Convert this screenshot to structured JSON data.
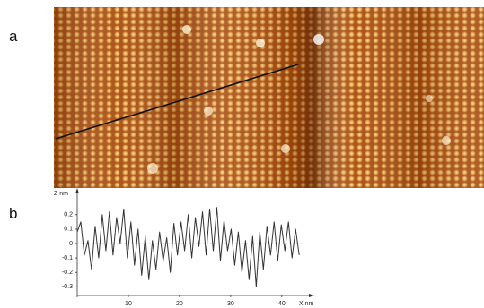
{
  "panel_labels": [
    "a",
    "b"
  ],
  "chart_data": {
    "type": "line",
    "y_label": "Z nm",
    "x_label": "X nm",
    "x": [
      0,
      0.7,
      1.4,
      2.1,
      2.8,
      3.5,
      4.2,
      4.9,
      5.6,
      6.3,
      7,
      7.7,
      8.4,
      9.1,
      9.8,
      10.5,
      11.2,
      11.9,
      12.6,
      13.3,
      14,
      14.7,
      15.4,
      16.1,
      16.8,
      17.5,
      18.2,
      18.9,
      19.6,
      20.3,
      21,
      21.7,
      22.4,
      23.1,
      23.8,
      24.5,
      25.2,
      25.9,
      26.6,
      27.3,
      28,
      28.7,
      29.4,
      30.1,
      30.8,
      31.5,
      32.2,
      32.9,
      33.6,
      34.3,
      35,
      35.7,
      36.4,
      37.1,
      37.8,
      38.5,
      39.2,
      39.9,
      40.6,
      41.3,
      42,
      42.7,
      43.4
    ],
    "values": [
      0.08,
      0.15,
      -0.08,
      0.02,
      -0.18,
      0.12,
      -0.1,
      0.2,
      -0.05,
      0.22,
      -0.08,
      0.18,
      0.0,
      0.24,
      -0.1,
      0.15,
      -0.15,
      0.1,
      -0.22,
      0.05,
      -0.25,
      0.02,
      -0.18,
      0.08,
      -0.12,
      0.04,
      -0.2,
      0.14,
      -0.08,
      0.15,
      -0.05,
      0.2,
      -0.1,
      0.18,
      -0.02,
      0.22,
      -0.08,
      0.24,
      -0.05,
      0.25,
      -0.12,
      0.16,
      -0.05,
      0.1,
      -0.15,
      0.08,
      -0.2,
      0.02,
      -0.25,
      0.05,
      -0.3,
      0.08,
      -0.18,
      0.12,
      -0.08,
      0.15,
      -0.12,
      0.13,
      -0.05,
      0.15,
      -0.1,
      0.1,
      -0.08
    ],
    "color": "#333333",
    "xlim": [
      0,
      46
    ],
    "ylim": [
      -0.36,
      0.36
    ],
    "xticks": [
      10,
      20,
      30,
      40
    ],
    "yticks": [
      0.2,
      0.1,
      0,
      -0.1,
      -0.2,
      -0.3
    ],
    "zero_line": true
  }
}
